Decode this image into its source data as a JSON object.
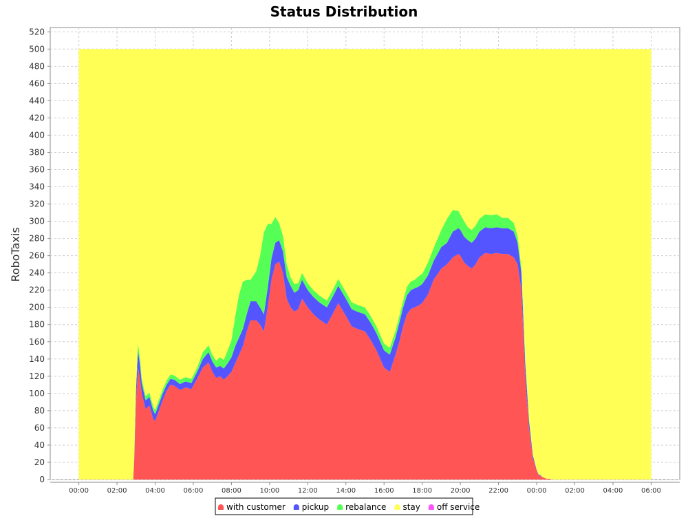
{
  "chart_data": {
    "type": "area",
    "stacked": true,
    "title": "Status Distribution",
    "xlabel": "",
    "ylabel": "RoboTaxis",
    "ylim": [
      0,
      525
    ],
    "yticks": [
      0,
      20,
      40,
      60,
      80,
      100,
      120,
      140,
      160,
      180,
      200,
      220,
      240,
      260,
      280,
      300,
      320,
      340,
      360,
      380,
      400,
      420,
      440,
      460,
      480,
      500,
      520
    ],
    "xlim_hours": [
      -1.5,
      31.5
    ],
    "x_tick_labels": [
      "00:00",
      "02:00",
      "04:00",
      "06:00",
      "08:00",
      "10:00",
      "12:00",
      "14:00",
      "16:00",
      "18:00",
      "20:00",
      "22:00",
      "00:00",
      "02:00",
      "04:00",
      "06:00"
    ],
    "x_hours": [
      0,
      2.85,
      2.9,
      3.0,
      3.1,
      3.2,
      3.3,
      3.5,
      3.7,
      3.9,
      4.0,
      4.2,
      4.4,
      4.6,
      4.8,
      5.0,
      5.3,
      5.6,
      5.9,
      6.2,
      6.5,
      6.8,
      7.0,
      7.2,
      7.4,
      7.6,
      7.8,
      8.0,
      8.2,
      8.4,
      8.6,
      8.8,
      9.0,
      9.3,
      9.5,
      9.7,
      9.9,
      10.1,
      10.3,
      10.5,
      10.7,
      10.9,
      11.1,
      11.3,
      11.5,
      11.7,
      12.0,
      12.3,
      12.6,
      13.0,
      13.3,
      13.6,
      14.0,
      14.3,
      14.6,
      15.0,
      15.3,
      15.6,
      16.0,
      16.3,
      16.6,
      16.8,
      17.0,
      17.2,
      17.4,
      17.6,
      17.8,
      18.0,
      18.3,
      18.6,
      19.0,
      19.3,
      19.6,
      19.9,
      20.0,
      20.2,
      20.4,
      20.6,
      20.8,
      21.0,
      21.3,
      21.6,
      21.9,
      22.2,
      22.5,
      22.8,
      23.0,
      23.2,
      23.4,
      23.6,
      23.8,
      24.0,
      24.1,
      24.2,
      24.3,
      24.4,
      24.5,
      24.6,
      24.7,
      24.8,
      24.9,
      25.0,
      25.3,
      25.8,
      26.5,
      27.0,
      30.0
    ],
    "series": [
      {
        "name": "with customer",
        "color": "#ff5555",
        "values": [
          0,
          0,
          20,
          90,
          130,
          118,
          100,
          82,
          86,
          70,
          68,
          80,
          92,
          103,
          110,
          109,
          104,
          107,
          105,
          117,
          130,
          136,
          125,
          118,
          120,
          116,
          120,
          125,
          135,
          145,
          155,
          172,
          185,
          185,
          180,
          172,
          200,
          232,
          250,
          253,
          240,
          210,
          200,
          195,
          198,
          210,
          200,
          192,
          186,
          180,
          192,
          205,
          190,
          178,
          175,
          172,
          162,
          150,
          130,
          125,
          145,
          160,
          178,
          192,
          198,
          200,
          202,
          205,
          215,
          232,
          245,
          250,
          258,
          262,
          260,
          252,
          248,
          245,
          250,
          258,
          263,
          262,
          263,
          262,
          262,
          258,
          250,
          220,
          120,
          60,
          25,
          10,
          5,
          4,
          3,
          2,
          1,
          1,
          1,
          0,
          0,
          0,
          0,
          0,
          0,
          0,
          0
        ]
      },
      {
        "name": "pickup",
        "color": "#5555ff",
        "values": [
          0,
          0,
          2,
          15,
          20,
          17,
          12,
          10,
          10,
          10,
          8,
          8,
          8,
          7,
          7,
          7,
          7,
          7,
          7,
          8,
          10,
          12,
          12,
          12,
          12,
          13,
          15,
          17,
          20,
          20,
          20,
          20,
          22,
          22,
          20,
          20,
          22,
          25,
          25,
          25,
          25,
          25,
          25,
          22,
          22,
          22,
          20,
          20,
          20,
          20,
          20,
          20,
          20,
          20,
          20,
          20,
          20,
          20,
          20,
          20,
          20,
          22,
          22,
          22,
          22,
          22,
          22,
          22,
          22,
          22,
          25,
          25,
          30,
          30,
          30,
          30,
          30,
          30,
          30,
          30,
          30,
          30,
          30,
          30,
          30,
          30,
          25,
          20,
          15,
          8,
          3,
          1,
          1,
          1,
          0,
          0,
          0,
          0,
          0,
          0,
          0,
          0,
          0,
          0,
          0,
          0,
          0
        ]
      },
      {
        "name": "rebalance",
        "color": "#55ff55",
        "values": [
          0,
          0,
          1,
          5,
          8,
          7,
          5,
          5,
          5,
          5,
          5,
          5,
          5,
          5,
          5,
          5,
          5,
          5,
          5,
          5,
          8,
          8,
          8,
          8,
          10,
          10,
          15,
          20,
          35,
          50,
          55,
          40,
          25,
          35,
          60,
          95,
          75,
          40,
          30,
          20,
          18,
          15,
          10,
          10,
          8,
          8,
          8,
          8,
          8,
          8,
          8,
          8,
          8,
          8,
          8,
          8,
          8,
          8,
          8,
          8,
          8,
          8,
          8,
          10,
          10,
          10,
          12,
          12,
          15,
          15,
          20,
          28,
          25,
          20,
          18,
          18,
          15,
          15,
          15,
          15,
          15,
          15,
          15,
          12,
          12,
          10,
          8,
          6,
          4,
          2,
          1,
          0,
          0,
          0,
          0,
          0,
          0,
          0,
          0,
          0,
          0,
          0,
          0,
          0,
          0,
          0,
          0
        ]
      },
      {
        "name": "stay",
        "color": "#ffff55",
        "values": [
          500,
          500,
          477,
          390,
          342,
          358,
          383,
          403,
          399,
          415,
          419,
          407,
          395,
          385,
          378,
          379,
          384,
          381,
          383,
          370,
          352,
          344,
          355,
          362,
          358,
          361,
          350,
          338,
          310,
          285,
          270,
          268,
          268,
          258,
          240,
          213,
          203,
          203,
          195,
          202,
          217,
          250,
          265,
          273,
          272,
          260,
          272,
          280,
          286,
          292,
          280,
          267,
          282,
          294,
          297,
          300,
          310,
          322,
          342,
          347,
          327,
          310,
          292,
          276,
          270,
          268,
          264,
          261,
          248,
          231,
          210,
          197,
          187,
          188,
          192,
          200,
          207,
          210,
          205,
          197,
          192,
          193,
          192,
          196,
          196,
          202,
          217,
          254,
          361,
          430,
          471,
          489,
          494,
          495,
          497,
          498,
          499,
          499,
          499,
          500,
          500,
          500,
          500,
          500,
          500,
          500,
          500
        ]
      },
      {
        "name": "off service",
        "color": "#ff55ff",
        "values": [
          0,
          0,
          0,
          0,
          0,
          0,
          0,
          0,
          0,
          0,
          0,
          0,
          0,
          0,
          0,
          0,
          0,
          0,
          0,
          0,
          0,
          0,
          0,
          0,
          0,
          0,
          0,
          0,
          0,
          0,
          0,
          0,
          0,
          0,
          0,
          0,
          0,
          0,
          0,
          0,
          0,
          0,
          0,
          0,
          0,
          0,
          0,
          0,
          0,
          0,
          0,
          0,
          0,
          0,
          0,
          0,
          0,
          0,
          0,
          0,
          0,
          0,
          0,
          0,
          0,
          0,
          0,
          0,
          0,
          0,
          0,
          0,
          0,
          0,
          0,
          0,
          0,
          0,
          0,
          0,
          0,
          0,
          0,
          0,
          0,
          0,
          0,
          0,
          0,
          0,
          0,
          0,
          0,
          0,
          0,
          0,
          0,
          0,
          0,
          0,
          0,
          0,
          0,
          0,
          0,
          0,
          0
        ]
      }
    ],
    "grid": true,
    "legend_position": "bottom-center",
    "plot_background": "#ffffff",
    "grid_color": "#cccccc"
  }
}
